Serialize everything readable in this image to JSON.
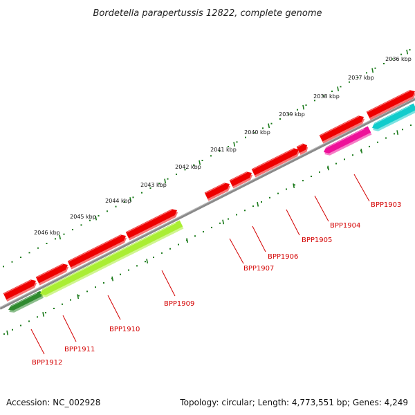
{
  "title": "Bordetella parapertussis 12822, complete genome",
  "footer": {
    "accession": "Accession: NC_002928",
    "summary": "Topology: circular; Length: 4,773,551 bp; Genes: 4,249"
  },
  "ruler_labels": [
    "2036 kbp",
    "2037 kbp",
    "2038 kbp",
    "2039 kbp",
    "2040 kbp",
    "2041 kbp",
    "2042 kbp",
    "2043 kbp",
    "2044 kbp",
    "2045 kbp",
    "2046 kbp"
  ],
  "gene_labels": [
    "BPP1903",
    "BPP1904",
    "BPP1905",
    "BPP1906",
    "BPP1907",
    "BPP1909",
    "BPP1910",
    "BPP1911",
    "BPP1912"
  ],
  "colors": {
    "backbone": "#8a8a8a",
    "tick": "#1a7a1a",
    "gene_red": "#ee0000",
    "gene_green": "#aaee33",
    "gene_darkgreen": "#2f8a2f",
    "gene_magenta": "#ee1199",
    "gene_cyan": "#11cccc",
    "label_red": "#d40000"
  }
}
